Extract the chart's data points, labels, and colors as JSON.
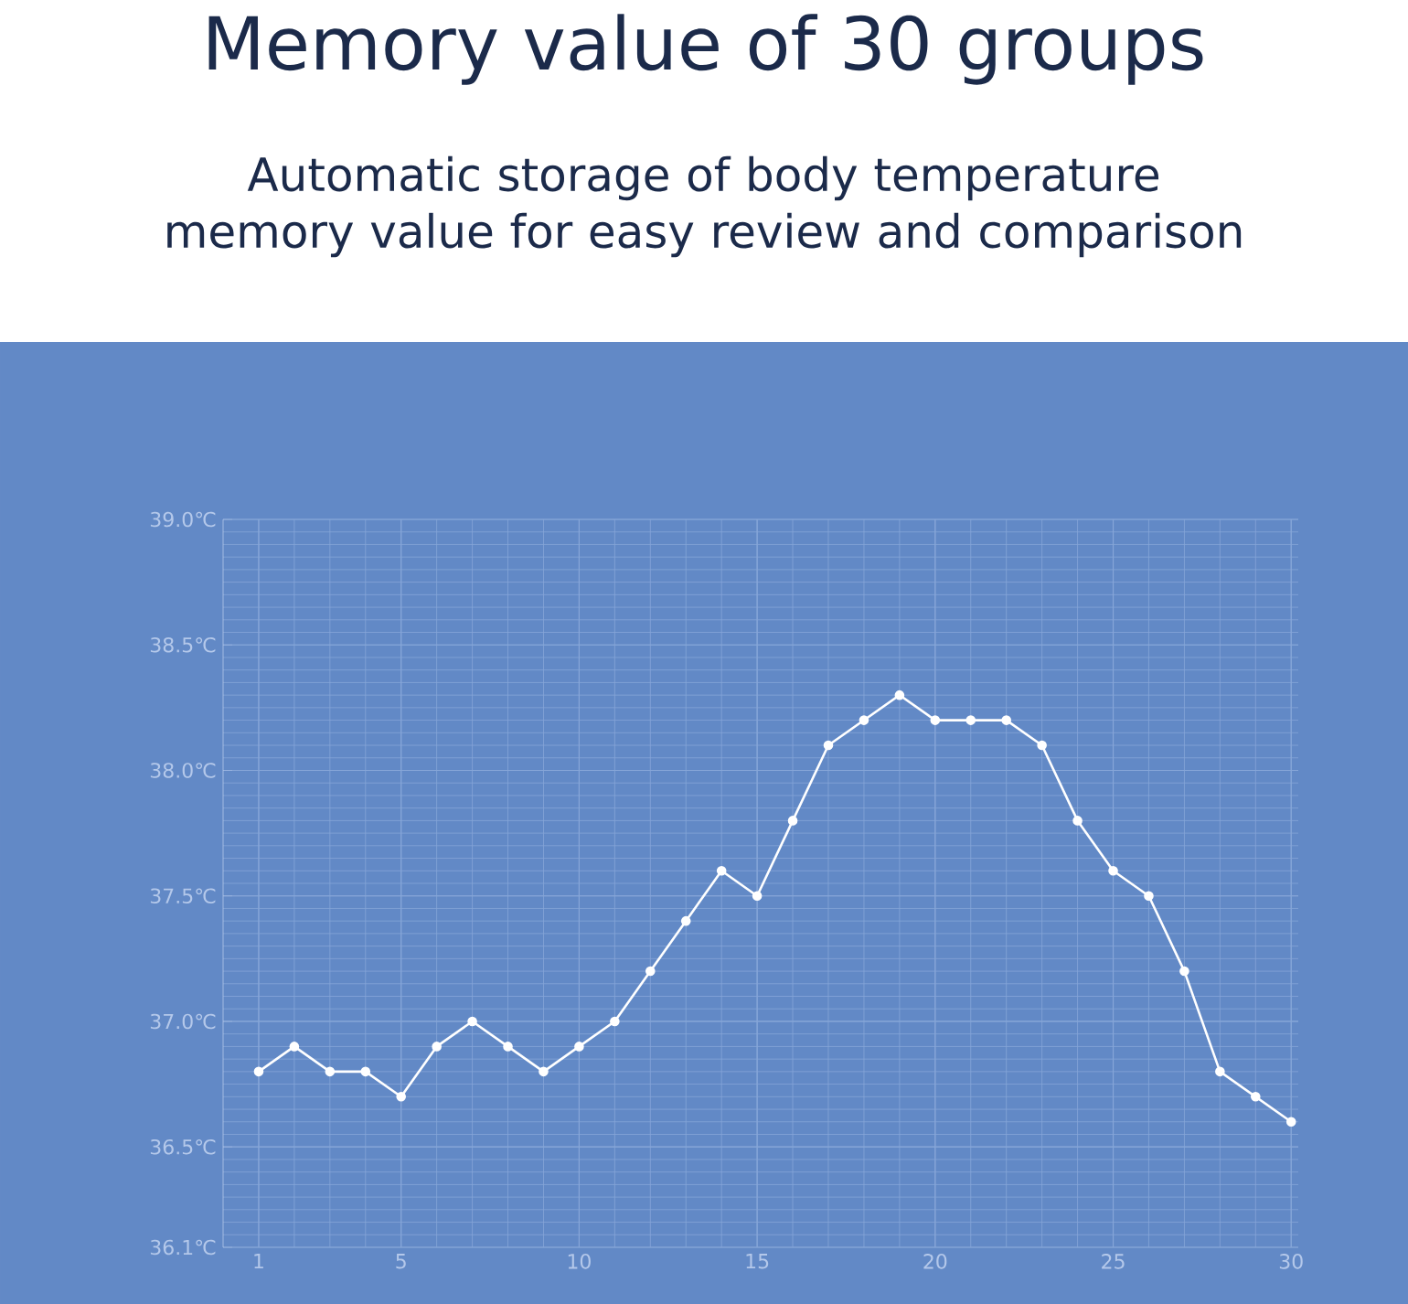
{
  "chart_data": {
    "type": "line",
    "title": "Memory value of 30 groups",
    "subtitle": "Automatic storage of body temperature memory value for easy review and comparison",
    "x": [
      1,
      2,
      3,
      4,
      5,
      6,
      7,
      8,
      9,
      10,
      11,
      12,
      13,
      14,
      15,
      16,
      17,
      18,
      19,
      20,
      21,
      22,
      23,
      24,
      25,
      26,
      27,
      28,
      29,
      30
    ],
    "series": [
      {
        "color": "#ffffff",
        "values": [
          36.8,
          36.9,
          36.8,
          36.8,
          36.7,
          36.9,
          37.0,
          36.9,
          36.8,
          36.9,
          37.0,
          37.2,
          37.4,
          37.6,
          37.5,
          37.8,
          38.1,
          38.2,
          38.3,
          38.2,
          38.2,
          38.2,
          38.1,
          37.8,
          37.6,
          37.5,
          37.2,
          36.8,
          36.7,
          36.6
        ]
      }
    ],
    "xlim": [
      0,
      30.2
    ],
    "xticks": [
      1,
      5,
      10,
      15,
      20,
      25,
      30
    ],
    "ylim": [
      36.1,
      39.0
    ],
    "yticks": [
      {
        "value": 36.1,
        "label": "36.1℃"
      },
      {
        "value": 36.5,
        "label": "36.5℃"
      },
      {
        "value": 37.0,
        "label": "37.0℃"
      },
      {
        "value": 37.5,
        "label": "37.5℃"
      },
      {
        "value": 38.0,
        "label": "38.0℃"
      },
      {
        "value": 38.5,
        "label": "38.5℃"
      },
      {
        "value": 39.0,
        "label": "39.0℃"
      }
    ],
    "grid": true,
    "marker": "circle"
  }
}
